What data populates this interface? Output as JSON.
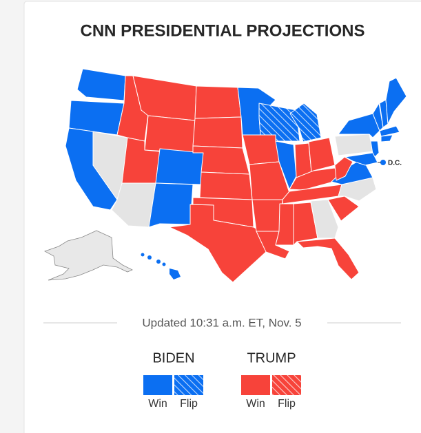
{
  "title": "CNN PRESIDENTIAL PROJECTIONS",
  "dc_label": "D.C.",
  "updated": "Updated 10:31 a.m. ET, Nov. 5",
  "legend": [
    {
      "name": "BIDEN",
      "color": "#0b6ff2",
      "items": [
        "Win",
        "Flip"
      ]
    },
    {
      "name": "TRUMP",
      "color": "#f7433a",
      "items": [
        "Win",
        "Flip"
      ]
    }
  ]
}
